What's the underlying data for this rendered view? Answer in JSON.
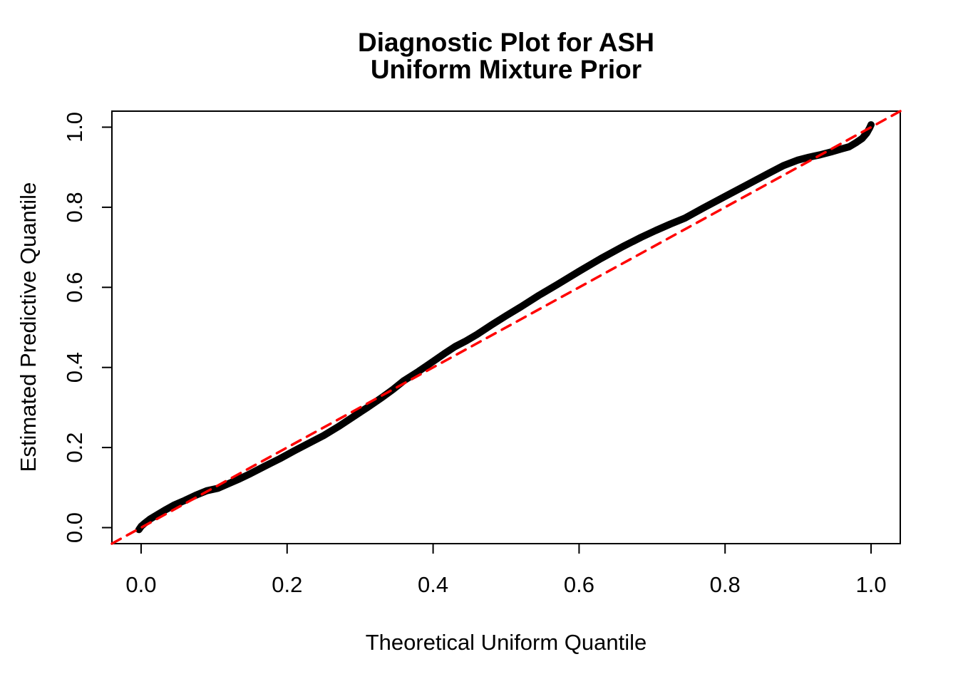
{
  "chart_data": {
    "type": "line",
    "title": "Diagnostic Plot for ASH\nUniform Mixture Prior",
    "title_lines": [
      "Diagnostic Plot for ASH",
      "Uniform Mixture Prior"
    ],
    "xlabel": "Theoretical Uniform Quantile",
    "ylabel": "Estimated Predictive Quantile",
    "xlim": [
      -0.04,
      1.04
    ],
    "ylim": [
      -0.04,
      1.04
    ],
    "grid": false,
    "legend": "none",
    "background_color": "#FFFFFF",
    "axis_color": "#000000",
    "x_ticks": [
      {
        "value": 0.0,
        "label": "0.0"
      },
      {
        "value": 0.2,
        "label": "0.2"
      },
      {
        "value": 0.4,
        "label": "0.4"
      },
      {
        "value": 0.6,
        "label": "0.6"
      },
      {
        "value": 0.8,
        "label": "0.8"
      },
      {
        "value": 1.0,
        "label": "1.0"
      }
    ],
    "y_ticks": [
      {
        "value": 0.0,
        "label": "0.0"
      },
      {
        "value": 0.2,
        "label": "0.2"
      },
      {
        "value": 0.4,
        "label": "0.4"
      },
      {
        "value": 0.6,
        "label": "0.6"
      },
      {
        "value": 0.8,
        "label": "0.8"
      },
      {
        "value": 1.0,
        "label": "1.0"
      }
    ],
    "series": [
      {
        "name": "qq-curve",
        "label": "Estimated predictive quantile vs theoretical uniform quantile",
        "color": "#000000",
        "style": "solid",
        "width": 10,
        "points": [
          [
            -0.003,
            -0.005
          ],
          [
            0.0,
            0.003
          ],
          [
            0.005,
            0.011
          ],
          [
            0.012,
            0.021
          ],
          [
            0.022,
            0.032
          ],
          [
            0.032,
            0.043
          ],
          [
            0.045,
            0.056
          ],
          [
            0.06,
            0.068
          ],
          [
            0.075,
            0.081
          ],
          [
            0.09,
            0.092
          ],
          [
            0.105,
            0.098
          ],
          [
            0.12,
            0.11
          ],
          [
            0.135,
            0.122
          ],
          [
            0.15,
            0.135
          ],
          [
            0.17,
            0.154
          ],
          [
            0.19,
            0.172
          ],
          [
            0.21,
            0.192
          ],
          [
            0.23,
            0.211
          ],
          [
            0.25,
            0.23
          ],
          [
            0.27,
            0.252
          ],
          [
            0.29,
            0.276
          ],
          [
            0.31,
            0.3
          ],
          [
            0.33,
            0.325
          ],
          [
            0.345,
            0.345
          ],
          [
            0.36,
            0.367
          ],
          [
            0.38,
            0.39
          ],
          [
            0.4,
            0.415
          ],
          [
            0.415,
            0.434
          ],
          [
            0.43,
            0.452
          ],
          [
            0.445,
            0.466
          ],
          [
            0.46,
            0.482
          ],
          [
            0.48,
            0.506
          ],
          [
            0.5,
            0.529
          ],
          [
            0.52,
            0.551
          ],
          [
            0.545,
            0.58
          ],
          [
            0.57,
            0.607
          ],
          [
            0.6,
            0.64
          ],
          [
            0.63,
            0.672
          ],
          [
            0.66,
            0.702
          ],
          [
            0.685,
            0.725
          ],
          [
            0.705,
            0.742
          ],
          [
            0.725,
            0.758
          ],
          [
            0.745,
            0.773
          ],
          [
            0.77,
            0.798
          ],
          [
            0.8,
            0.827
          ],
          [
            0.83,
            0.856
          ],
          [
            0.86,
            0.885
          ],
          [
            0.88,
            0.904
          ],
          [
            0.9,
            0.918
          ],
          [
            0.915,
            0.925
          ],
          [
            0.93,
            0.931
          ],
          [
            0.945,
            0.938
          ],
          [
            0.96,
            0.946
          ],
          [
            0.97,
            0.951
          ],
          [
            0.98,
            0.962
          ],
          [
            0.988,
            0.972
          ],
          [
            0.994,
            0.985
          ],
          [
            0.998,
            0.998
          ],
          [
            1.0,
            1.006
          ]
        ]
      },
      {
        "name": "reference-line",
        "label": "y = x reference line",
        "color": "#FF0000",
        "style": "dashed",
        "width": 3.5,
        "points": [
          [
            -0.04,
            -0.04
          ],
          [
            1.04,
            1.04
          ]
        ]
      }
    ]
  }
}
